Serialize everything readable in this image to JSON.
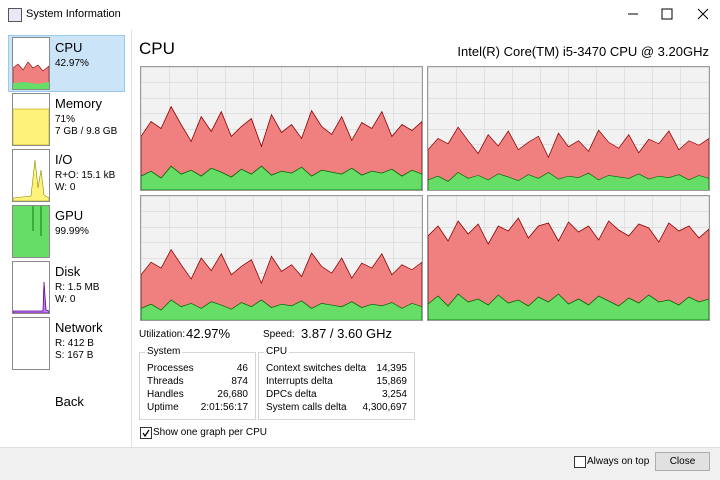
{
  "window": {
    "title": "System Information"
  },
  "sidebar": {
    "items": [
      {
        "name": "CPU",
        "details": [
          "42.97%"
        ]
      },
      {
        "name": "Memory",
        "details": [
          "71%",
          "7 GB / 9.8 GB"
        ]
      },
      {
        "name": "I/O",
        "details": [
          "R+O: 15.1 kB",
          "W: 0"
        ]
      },
      {
        "name": "GPU",
        "details": [
          "99.99%"
        ]
      },
      {
        "name": "Disk",
        "details": [
          "R: 1.5 MB",
          "W: 0"
        ]
      },
      {
        "name": "Network",
        "details": [
          "R: 412 B",
          "S: 167 B"
        ]
      }
    ],
    "back": "Back"
  },
  "main": {
    "title": "CPU",
    "processor": "Intel(R) Core(TM) i5-3470 CPU @ 3.20GHz",
    "utilization": {
      "label": "Utilization:",
      "value": "42.97%"
    },
    "speed": {
      "label": "Speed:",
      "value": "3.87 / 3.60 GHz"
    },
    "system": {
      "title": "System",
      "rows": [
        [
          "Processes",
          "46"
        ],
        [
          "Threads",
          "874"
        ],
        [
          "Handles",
          "26,680"
        ],
        [
          "Uptime",
          "2:01:56:17"
        ]
      ]
    },
    "cpu": {
      "title": "CPU",
      "rows": [
        [
          "Context switches delta",
          "14,395"
        ],
        [
          "Interrupts delta",
          "15,869"
        ],
        [
          "DPCs delta",
          "3,254"
        ],
        [
          "System calls delta",
          "4,300,697"
        ]
      ]
    },
    "per_cpu_checkbox": "Show one graph per CPU"
  },
  "footer": {
    "always_on_top": "Always on top",
    "close": "Close"
  }
}
